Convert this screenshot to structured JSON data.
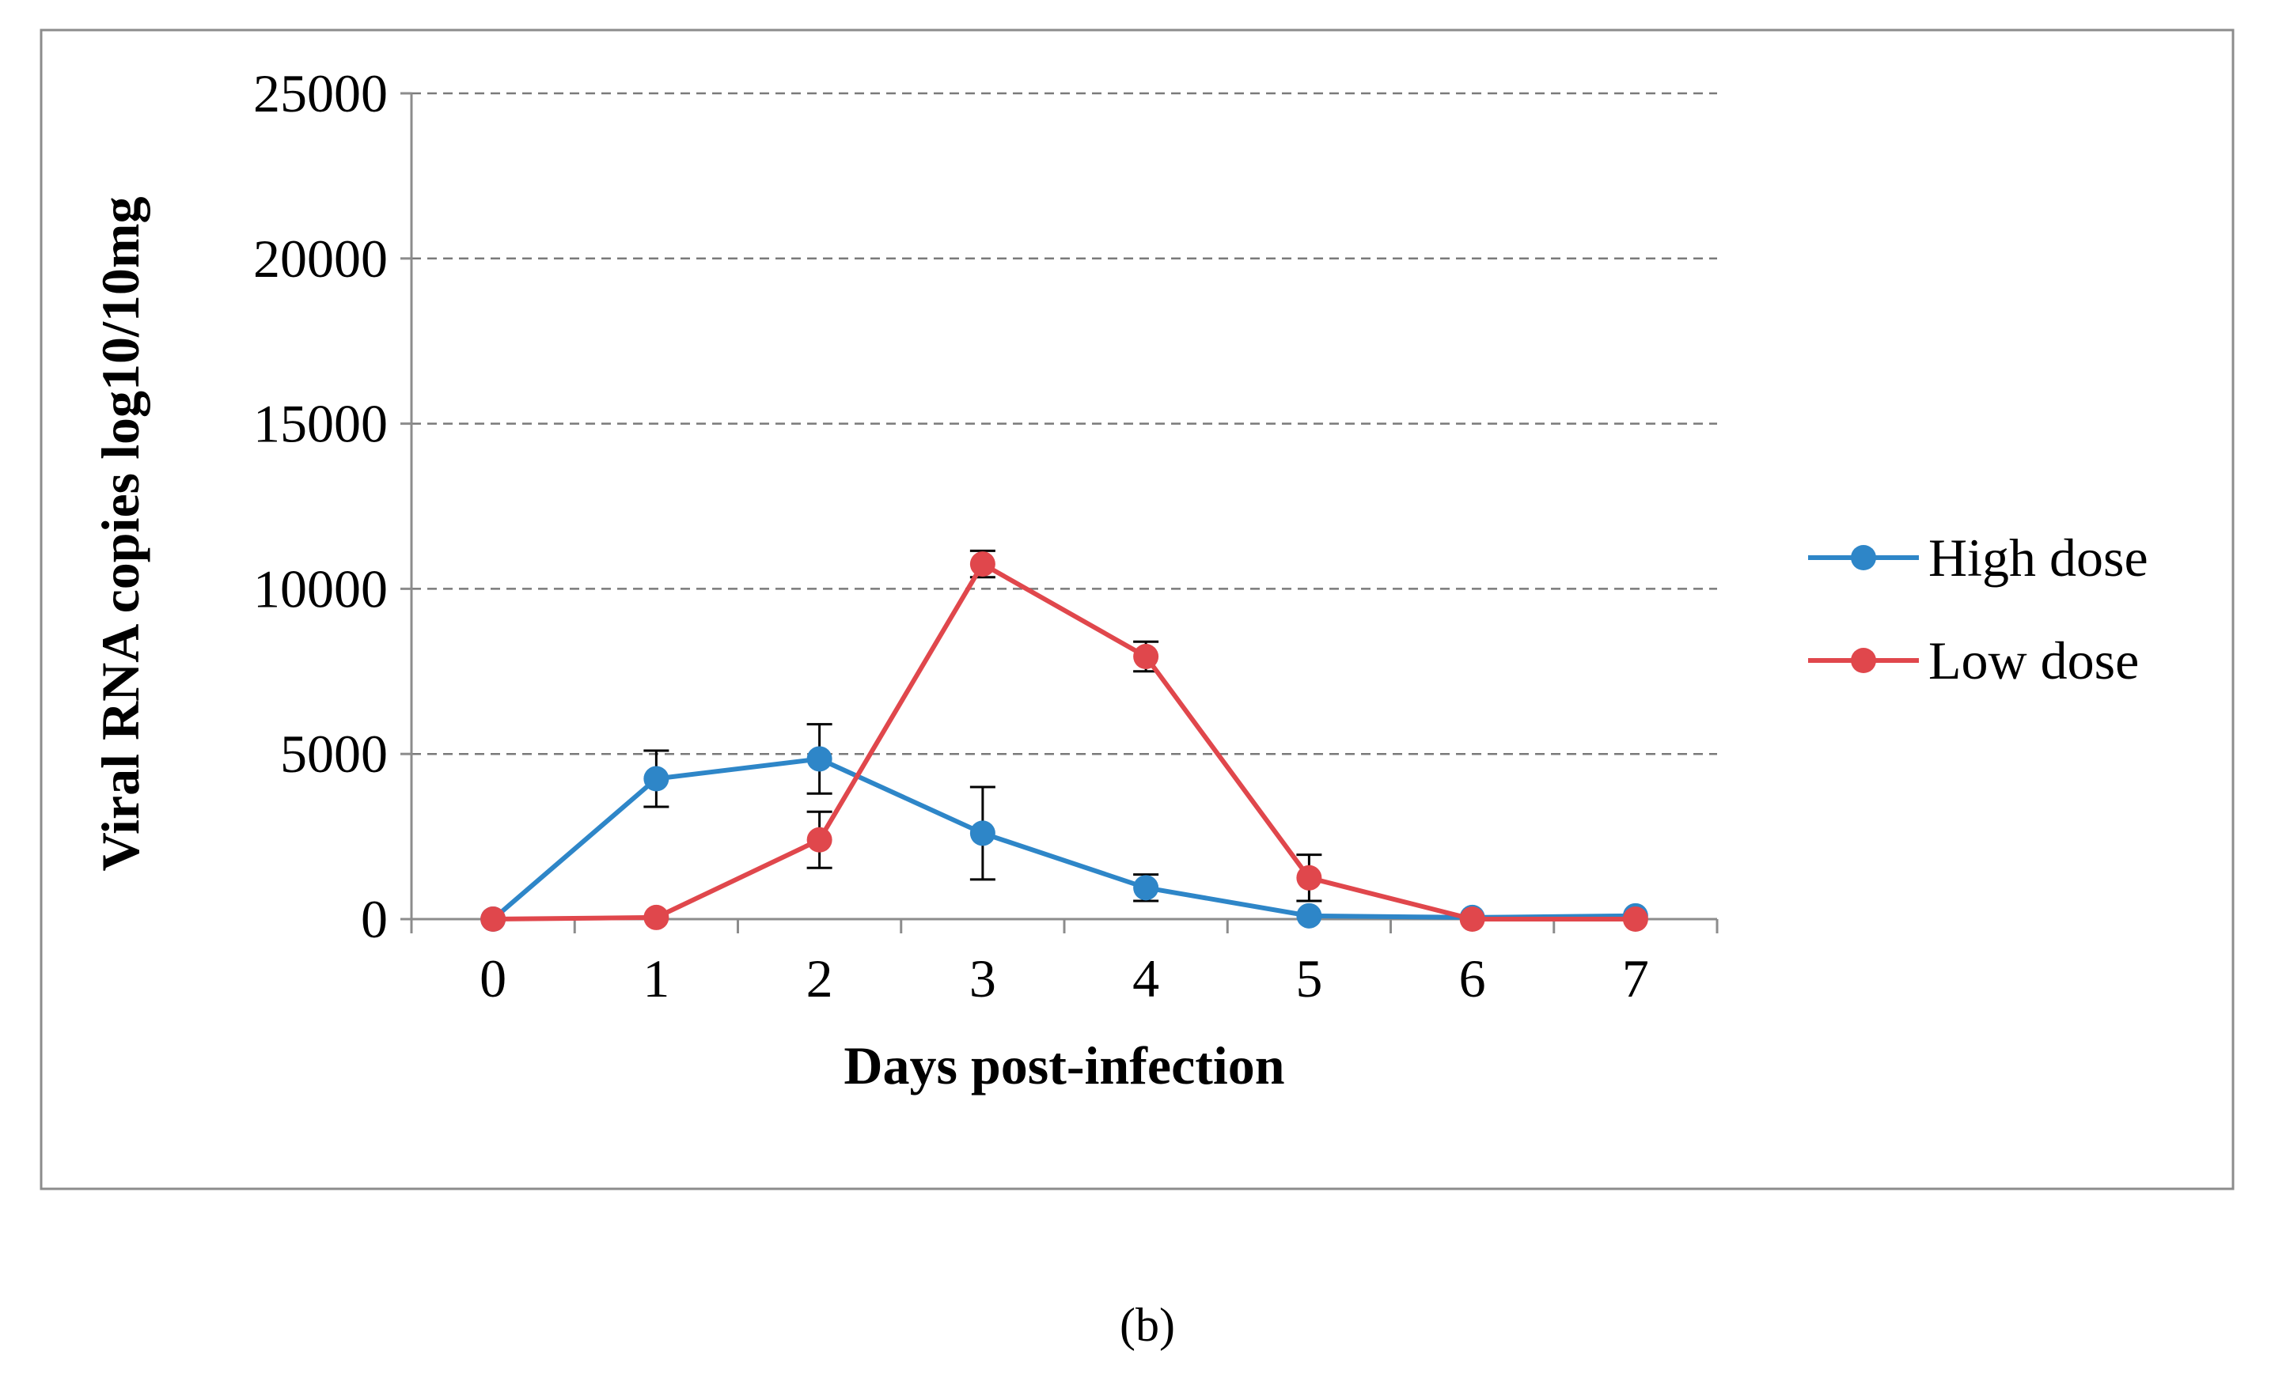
{
  "chart_data": {
    "type": "line",
    "xlabel": "Days post-infection",
    "ylabel": "Viral RNA copies log10/10mg",
    "x": [
      0,
      1,
      2,
      3,
      4,
      5,
      6,
      7
    ],
    "x_tick_labels": [
      "0",
      "1",
      "2",
      "3",
      "4",
      "5",
      "6",
      "7"
    ],
    "ylim": [
      0,
      25000
    ],
    "y_ticks": [
      0,
      5000,
      10000,
      15000,
      20000,
      25000
    ],
    "y_tick_labels": [
      "0",
      "5000",
      "10000",
      "15000",
      "20000",
      "25000"
    ],
    "grid": "horizontal dashed",
    "legend_position": "right",
    "series": [
      {
        "name": "High dose",
        "color": "#2E86C8",
        "values": [
          0,
          4250,
          4850,
          2600,
          950,
          100,
          50,
          100
        ],
        "errors": [
          0,
          850,
          1050,
          1400,
          400,
          0,
          0,
          0
        ]
      },
      {
        "name": "Low dose",
        "color": "#E0474C",
        "values": [
          0,
          50,
          2400,
          10750,
          7950,
          1250,
          0,
          0
        ],
        "errors": [
          0,
          0,
          850,
          400,
          450,
          700,
          0,
          0
        ]
      }
    ]
  },
  "caption": "(b)"
}
